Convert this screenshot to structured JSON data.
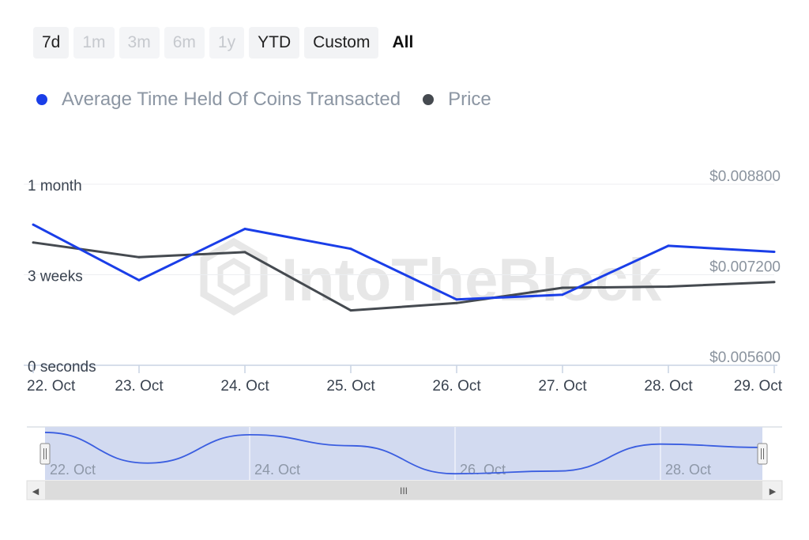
{
  "range_buttons": [
    {
      "label": "7d",
      "state": "normal"
    },
    {
      "label": "1m",
      "state": "disabled"
    },
    {
      "label": "3m",
      "state": "disabled"
    },
    {
      "label": "6m",
      "state": "disabled"
    },
    {
      "label": "1y",
      "state": "disabled"
    },
    {
      "label": "YTD",
      "state": "normal"
    },
    {
      "label": "Custom",
      "state": "normal"
    },
    {
      "label": "All",
      "state": "active"
    }
  ],
  "legend": [
    {
      "label": "Average Time Held Of Coins Transacted",
      "color": "#1a3ee8"
    },
    {
      "label": "Price",
      "color": "#454a50"
    }
  ],
  "watermark": "IntoTheBlock",
  "chart_data": {
    "type": "line",
    "title": "",
    "x": [
      "22. Oct",
      "23. Oct",
      "24. Oct",
      "25. Oct",
      "26. Oct",
      "27. Oct",
      "28. Oct",
      "29. Oct"
    ],
    "y_left_ticks": [
      "0 seconds",
      "3 weeks",
      "1 month"
    ],
    "y_right_ticks": [
      "$0.005600",
      "$0.007200",
      "$0.008800"
    ],
    "y_left_range_days": [
      0,
      30
    ],
    "y_right_range": [
      0.0056,
      0.0088
    ],
    "series": [
      {
        "name": "Average Time Held Of Coins Transacted",
        "axis": "left",
        "unit": "days",
        "color": "#1a3ee8",
        "values": [
          23.3,
          14.1,
          22.6,
          19.3,
          10.9,
          11.7,
          19.8,
          18.8
        ]
      },
      {
        "name": "Price",
        "axis": "right",
        "color": "#454a50",
        "values": [
          0.00777,
          0.00751,
          0.0076,
          0.00657,
          0.0067,
          0.00697,
          0.00699,
          0.00707
        ]
      }
    ],
    "grid": "horizontal",
    "legend_position": "top-left"
  },
  "navigator": {
    "labels": [
      "22. Oct",
      "24. Oct",
      "26. Oct",
      "28. Oct"
    ],
    "scroll_glyph": "III",
    "left_arrow": "◀",
    "right_arrow": "▶"
  }
}
